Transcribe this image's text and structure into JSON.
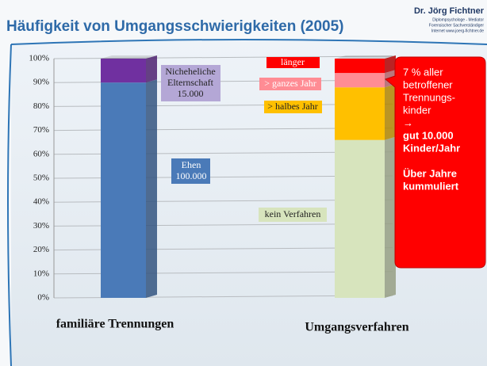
{
  "header": {
    "author": "Dr. Jörg Fichtner",
    "lines": [
      "Diplompsychologe - Mediator",
      "Forensischer Sachverständiger",
      "Internet www.joerg-fichtner.de"
    ]
  },
  "chart_data": {
    "type": "bar",
    "stacked": true,
    "title": "Häufigkeit von Umgangsschwierigkeiten (2005)",
    "categories": [
      "familiäre Trennungen",
      "Umgangsverfahren"
    ],
    "series": [
      {
        "name": "Ehen",
        "count": "100.000",
        "color": "#4a7ab8",
        "values": [
          90,
          null
        ]
      },
      {
        "name": "Nicheheliche Elternschaft",
        "count": "15.000",
        "color": "#7030a0",
        "values": [
          10,
          null
        ]
      },
      {
        "name": "kein Verfahren",
        "color": "#d7e4bd",
        "values": [
          null,
          66
        ]
      },
      {
        "name": "> halbes Jahr",
        "color": "#ffc000",
        "values": [
          null,
          22
        ]
      },
      {
        "name": "> ganzes Jahr",
        "color": "#ff8c94",
        "values": [
          null,
          6
        ]
      },
      {
        "name": "länger",
        "color": "#ff0000",
        "values": [
          null,
          6
        ]
      }
    ],
    "ylim": [
      0,
      100
    ],
    "yticks": [
      {
        "value": 0,
        "label": "0%"
      },
      {
        "value": 10,
        "label": "10%"
      },
      {
        "value": 20,
        "label": "20%"
      },
      {
        "value": 30,
        "label": "30%"
      },
      {
        "value": 40,
        "label": "40%"
      },
      {
        "value": 50,
        "label": "50%"
      },
      {
        "value": 60,
        "label": "60%"
      },
      {
        "value": 70,
        "label": "70%"
      },
      {
        "value": 80,
        "label": "80%"
      },
      {
        "value": 90,
        "label": "90%"
      },
      {
        "value": 100,
        "label": "100%"
      }
    ],
    "grid": true,
    "callout": {
      "lines": [
        "7 % aller",
        "betroffener",
        "Trennungs-",
        "kinder",
        "→"
      ],
      "bold_lines": [
        "gut 10.000",
        "Kinder/Jahr"
      ],
      "bold_lines_2": [
        "Über Jahre",
        "kummuliert"
      ]
    }
  }
}
